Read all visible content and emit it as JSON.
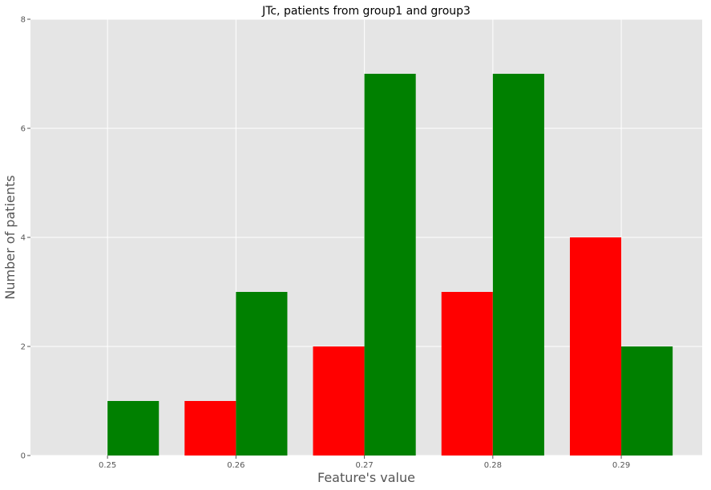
{
  "chart_data": {
    "type": "bar",
    "title": "JTc, patients from group1 and group3",
    "xlabel": "Feature's value",
    "ylabel": "Number of patients",
    "categories": [
      "0.25",
      "0.26",
      "0.27",
      "0.28",
      "0.29"
    ],
    "x_values": [
      0.25,
      0.26,
      0.27,
      0.28,
      0.29
    ],
    "xlim": [
      0.244,
      0.2963
    ],
    "ylim": [
      0,
      8
    ],
    "x_ticks": [
      "0.25",
      "0.26",
      "0.27",
      "0.28",
      "0.29"
    ],
    "y_ticks": [
      "0",
      "2",
      "4",
      "6",
      "8"
    ],
    "grid": true,
    "legend": "none",
    "series": [
      {
        "color": "#ff0000",
        "values": [
          0,
          1,
          2,
          3,
          4
        ]
      },
      {
        "color": "#008000",
        "values": [
          1,
          3,
          7,
          7,
          2
        ]
      }
    ]
  }
}
